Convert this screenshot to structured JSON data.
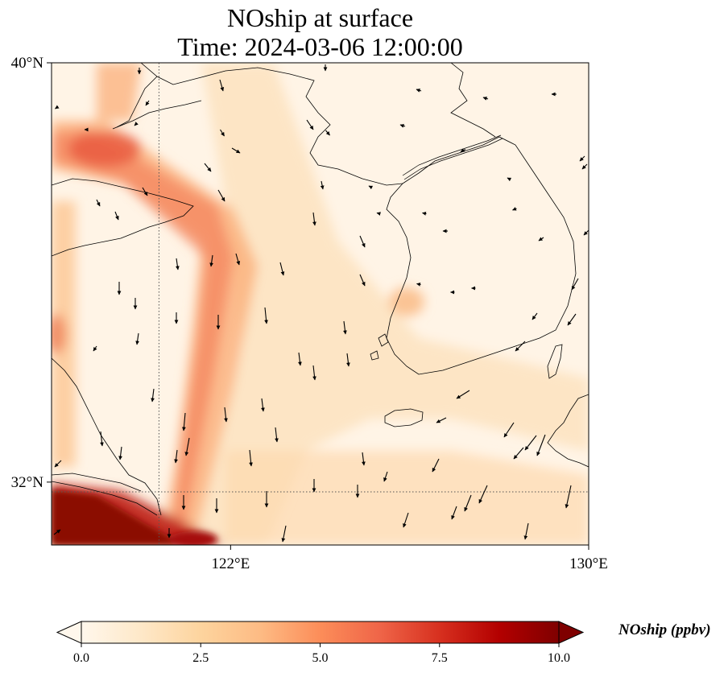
{
  "title": {
    "line1": "NOship at surface",
    "line2": "Time: 2024-03-06 12:00:00"
  },
  "map": {
    "variable": "NOship",
    "level": "surface",
    "units": "ppbv",
    "extent": {
      "lon": [
        118,
        130
      ],
      "lat": [
        30.8,
        40
      ]
    },
    "lat_ticks": [
      {
        "value": 40,
        "label": "40°N"
      },
      {
        "value": 32,
        "label": "32°N"
      }
    ],
    "lon_ticks": [
      {
        "value": 122,
        "label": "122°E"
      },
      {
        "value": 130,
        "label": "130°E"
      }
    ],
    "gridlines": {
      "style": "dotted",
      "lat": [
        32
      ],
      "lon": [
        122
      ]
    },
    "colormap": "OrRd",
    "vectors": "wind arrows",
    "colors": {
      "land_outline": "#000000",
      "arrow": "#000000"
    }
  },
  "colorbar": {
    "label": "NOship (ppbv)",
    "min": 0.0,
    "max": 10.0,
    "ticks": [
      "0.0",
      "2.5",
      "5.0",
      "7.5",
      "10.0"
    ],
    "extend": "both",
    "stops": [
      "#fff7ec",
      "#fee8c8",
      "#fdd49e",
      "#fdbb84",
      "#fc8d59",
      "#ef6548",
      "#d7301f",
      "#b30000",
      "#7f0000"
    ]
  }
}
